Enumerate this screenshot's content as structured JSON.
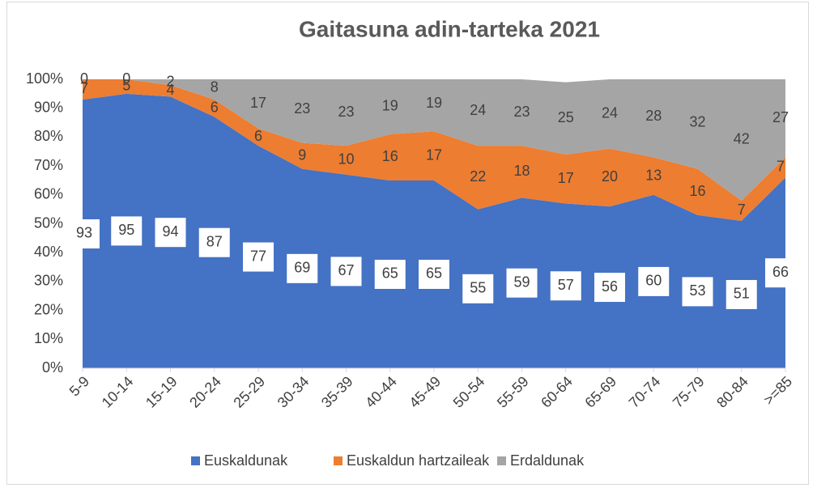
{
  "chart_data": {
    "type": "stacked_area_100",
    "title": "Gaitasuna adin-tarteka 2021",
    "categories": [
      "5-9",
      "10-14",
      "15-19",
      "20-24",
      "25-29",
      "30-34",
      "35-39",
      "40-44",
      "45-49",
      "50-54",
      "55-59",
      "60-64",
      "65-69",
      "70-74",
      "75-79",
      "80-84",
      ">=85"
    ],
    "series": [
      {
        "name": "Euskaldunak",
        "color": "#4472c4",
        "values": [
          93,
          95,
          94,
          87,
          77,
          69,
          67,
          65,
          65,
          55,
          59,
          57,
          56,
          60,
          53,
          51,
          66
        ]
      },
      {
        "name": "Euskaldun hartzaileak",
        "color": "#ed7d31",
        "values": [
          7,
          5,
          4,
          6,
          6,
          9,
          10,
          16,
          17,
          22,
          18,
          17,
          20,
          13,
          16,
          7,
          7
        ]
      },
      {
        "name": "Erdaldunak",
        "color": "#a5a5a5",
        "values": [
          0,
          0,
          2,
          8,
          17,
          23,
          23,
          19,
          19,
          24,
          23,
          25,
          24,
          28,
          32,
          42,
          27
        ]
      }
    ],
    "ylim": [
      0,
      100
    ],
    "yticks": [
      {
        "value": 0,
        "label": "0%"
      },
      {
        "value": 10,
        "label": "10%"
      },
      {
        "value": 20,
        "label": "20%"
      },
      {
        "value": 30,
        "label": "30%"
      },
      {
        "value": 40,
        "label": "40%"
      },
      {
        "value": 50,
        "label": "50%"
      },
      {
        "value": 60,
        "label": "60%"
      },
      {
        "value": 70,
        "label": "70%"
      },
      {
        "value": 80,
        "label": "80%"
      },
      {
        "value": 90,
        "label": "90%"
      },
      {
        "value": 100,
        "label": "100%"
      }
    ],
    "legend": "bottom"
  }
}
